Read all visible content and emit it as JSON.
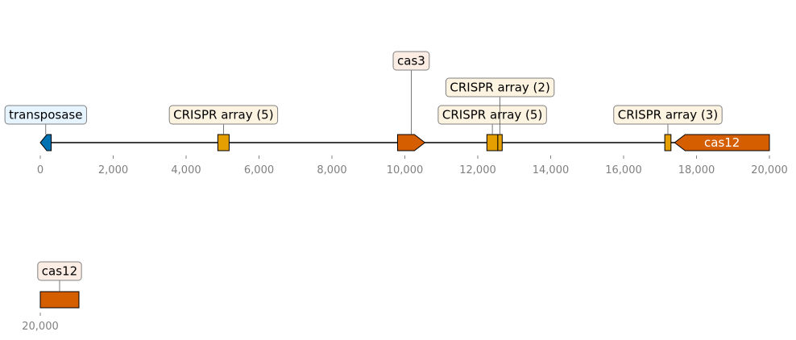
{
  "tracks": [
    {
      "start": 0,
      "end": 20000,
      "ticks": [
        "0",
        "2,000",
        "4,000",
        "6,000",
        "8,000",
        "10,000",
        "12,000",
        "14,000",
        "16,000",
        "18,000",
        "20,000"
      ],
      "tick_values": [
        0,
        2000,
        4000,
        6000,
        8000,
        10000,
        12000,
        14000,
        16000,
        18000,
        20000
      ],
      "features": [
        {
          "name": "transposase",
          "start": 0,
          "end": 300,
          "strand": -1,
          "color": "#0072b2",
          "label": "transposase",
          "label_bg": "#e6f4ff",
          "label_level": 1
        },
        {
          "name": "crispr-array-5a",
          "start": 4870,
          "end": 5180,
          "strand": 0,
          "color": "#e69f00",
          "label": "CRISPR array (5)",
          "label_bg": "#fdf3e1",
          "label_level": 1
        },
        {
          "name": "cas3",
          "start": 9800,
          "end": 10550,
          "strand": 1,
          "color": "#d55e00",
          "label": "cas3",
          "label_bg": "#fbece4",
          "label_level": 3
        },
        {
          "name": "crispr-array-5b",
          "start": 12250,
          "end": 12550,
          "strand": 0,
          "color": "#e69f00",
          "label": "CRISPR array (5)",
          "label_bg": "#fdf3e1",
          "label_level": 1
        },
        {
          "name": "crispr-array-2",
          "start": 12550,
          "end": 12670,
          "strand": 0,
          "color": "#e69f00",
          "label": "CRISPR array (2)",
          "label_bg": "#fdf3e1",
          "label_level": 2
        },
        {
          "name": "crispr-array-3",
          "start": 17130,
          "end": 17300,
          "strand": 0,
          "color": "#e69f00",
          "label": "CRISPR array (3)",
          "label_bg": "#fdf3e1",
          "label_level": 1
        },
        {
          "name": "cas12",
          "start": 17400,
          "end": 20000,
          "strand": -1,
          "color": "#d55e00",
          "label": "cas12",
          "inline": true,
          "inline_color": "#ffffff"
        }
      ]
    },
    {
      "start": 20000,
      "end": 21000,
      "ticks": [
        "20,000"
      ],
      "tick_values": [
        20000
      ],
      "features": [
        {
          "name": "cas12-cont",
          "start": 20000,
          "end": 21060,
          "strand": 0,
          "color": "#d55e00",
          "label": "cas12",
          "label_bg": "#fbece4",
          "label_level": 1
        }
      ]
    }
  ]
}
